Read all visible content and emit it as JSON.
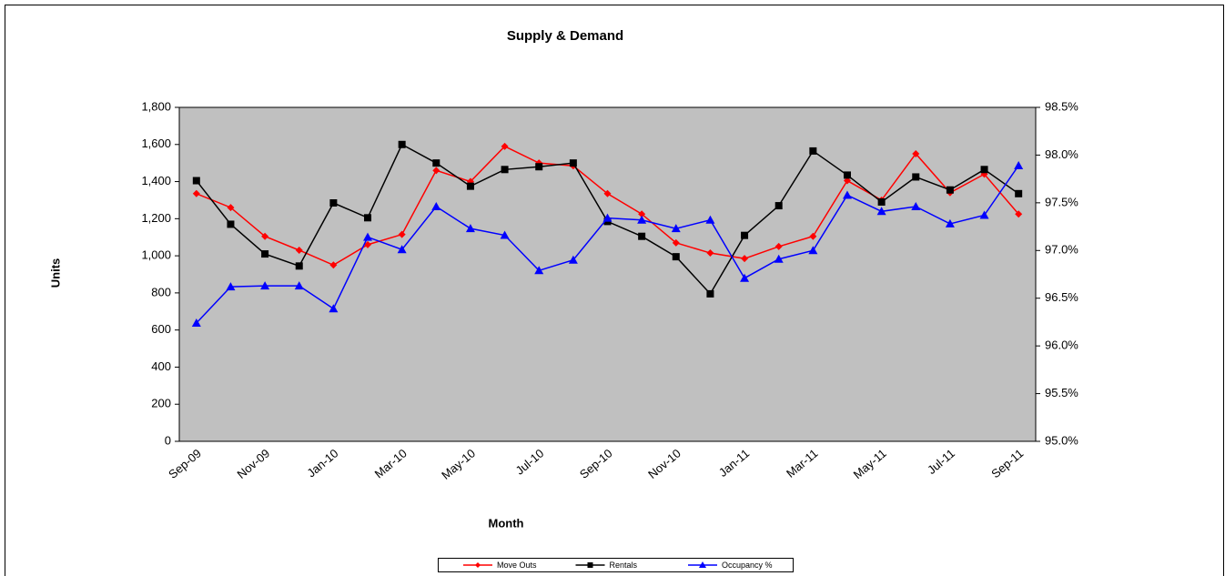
{
  "chart_data": {
    "type": "line",
    "title": "Supply & Demand",
    "xlabel": "Month",
    "ylabel": "Units",
    "categories": [
      "Sep-09",
      null,
      "Nov-09",
      null,
      "Jan-10",
      null,
      "Mar-10",
      null,
      "May-10",
      null,
      "Jul-10",
      null,
      "Sep-10",
      null,
      "Nov-10",
      null,
      "Jan-11",
      null,
      "Mar-11",
      null,
      "May-11",
      null,
      "Jul-11",
      null,
      "Sep-11"
    ],
    "series": [
      {
        "name": "Move Outs",
        "color": "#ff0000",
        "marker": "diamond",
        "values": [
          1335,
          1260,
          1105,
          1030,
          950,
          1060,
          1115,
          1460,
          1400,
          1590,
          1500,
          1485,
          1335,
          1225,
          1070,
          1015,
          985,
          1050,
          1105,
          1405,
          1300,
          1550,
          1340,
          1440,
          1225
        ]
      },
      {
        "name": "Rentals",
        "color": "#000000",
        "marker": "square",
        "values": [
          1405,
          1170,
          1010,
          945,
          1285,
          1205,
          1600,
          1500,
          1375,
          1465,
          1480,
          1500,
          1185,
          1105,
          995,
          795,
          1110,
          1270,
          1565,
          1435,
          1290,
          1425,
          1355,
          1465,
          1335
        ]
      },
      {
        "name": "Occupancy %",
        "color": "#0000ff",
        "marker": "triangle",
        "axis": "y2",
        "values": [
          96.24,
          96.62,
          96.63,
          96.63,
          96.39,
          97.14,
          97.01,
          97.46,
          97.23,
          97.16,
          96.79,
          96.9,
          97.34,
          97.32,
          97.23,
          97.32,
          96.71,
          96.91,
          97.0,
          97.58,
          97.41,
          97.46,
          97.28,
          97.37,
          97.89
        ]
      }
    ],
    "ylim": [
      0,
      1800
    ],
    "yticks": [
      0,
      200,
      400,
      600,
      800,
      {
        "value": 1000,
        "label": "1,000"
      },
      {
        "value": 1200,
        "label": "1,200"
      },
      {
        "value": 1400,
        "label": "1,400"
      },
      {
        "value": 1600,
        "label": "1,600"
      },
      {
        "value": 1800,
        "label": "1,800"
      }
    ],
    "y2lim": [
      95.0,
      98.5
    ],
    "y2ticks": [
      {
        "value": 95.0,
        "label": "95.0%"
      },
      {
        "value": 95.5,
        "label": "95.5%"
      },
      {
        "value": 96.0,
        "label": "96.0%"
      },
      {
        "value": 96.5,
        "label": "96.5%"
      },
      {
        "value": 97.0,
        "label": "97.0%"
      },
      {
        "value": 97.5,
        "label": "97.5%"
      },
      {
        "value": 98.0,
        "label": "98.0%"
      },
      {
        "value": 98.5,
        "label": "98.5%"
      }
    ],
    "plot_background": "#c0c0c0",
    "legend": "bottom"
  }
}
